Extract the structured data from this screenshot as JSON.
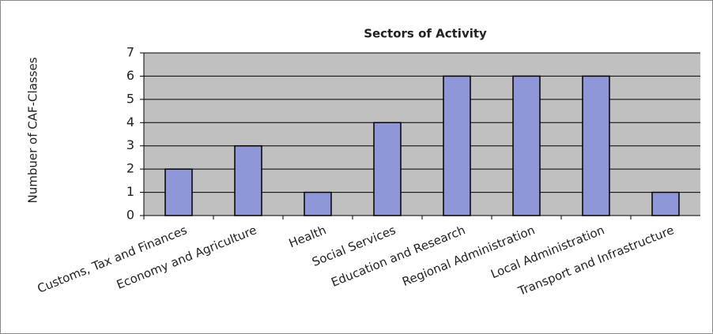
{
  "chart_data": {
    "type": "bar",
    "title": "Sectors of Activity",
    "y_label": "Numbuer of CAF-Classes",
    "categories": [
      "Customs, Tax and Finances",
      "Economy and Agriculture",
      "Health",
      "Social Services",
      "Education and Research",
      "Regional Administration",
      "Local Administration",
      "Transport and Infrastructure"
    ],
    "values": [
      2,
      3,
      1,
      4,
      6,
      6,
      6,
      1
    ],
    "color": "#8f97d9",
    "ylim": [
      0,
      7
    ],
    "yticks": [
      0,
      1,
      2,
      3,
      4,
      5,
      6,
      7
    ],
    "grid": true
  }
}
